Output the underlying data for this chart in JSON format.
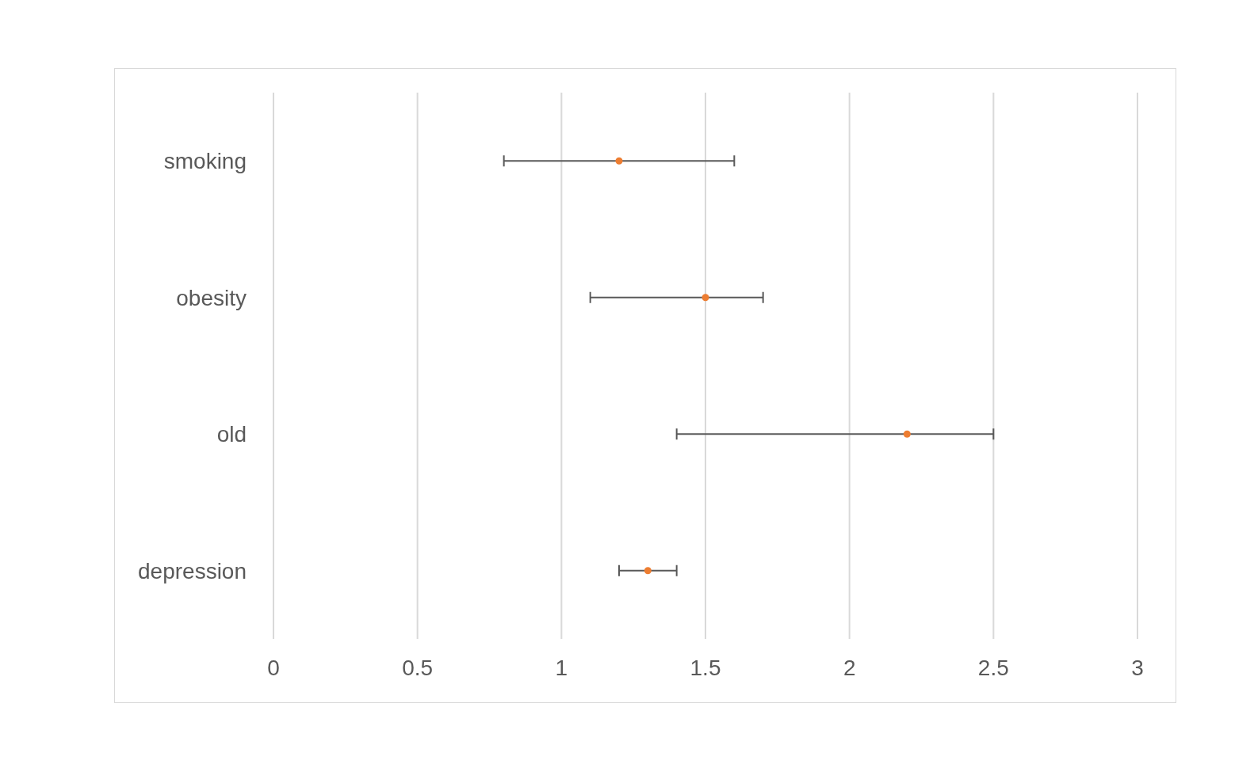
{
  "chart_data": {
    "type": "scatter",
    "orientation": "horizontal",
    "categories": [
      "smoking",
      "obesity",
      "old",
      "depression"
    ],
    "values": [
      1.2,
      1.5,
      2.2,
      1.3
    ],
    "errors": [
      [
        0.8,
        1.6
      ],
      [
        1.1,
        1.7
      ],
      [
        1.4,
        2.5
      ],
      [
        1.2,
        1.4
      ]
    ],
    "color": "#ed7d31",
    "xlim": [
      0,
      3
    ],
    "xticks": [
      0,
      0.5,
      1,
      1.5,
      2,
      2.5,
      3
    ],
    "grid": "x",
    "marker": "circle",
    "legend": false
  }
}
